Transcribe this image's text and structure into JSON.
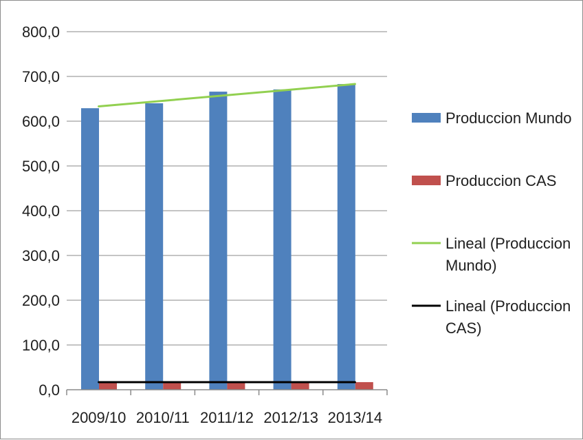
{
  "chart_data": {
    "type": "bar",
    "title": "",
    "xlabel": "",
    "ylabel": "",
    "categories": [
      "2009/10",
      "2010/11",
      "2011/12",
      "2012/13",
      "2013/14"
    ],
    "ylim": [
      0,
      800
    ],
    "y_ticks": [
      0,
      100,
      200,
      300,
      400,
      500,
      600,
      700,
      800
    ],
    "y_tick_labels": [
      "0,0",
      "100,0",
      "200,0",
      "300,0",
      "400,0",
      "500,0",
      "600,0",
      "700,0",
      "800,0"
    ],
    "grid": true,
    "legend_position": "right",
    "series": [
      {
        "name": "Produccion  Mundo",
        "color": "#4f81bd",
        "values": [
          629,
          640,
          666,
          671,
          683
        ]
      },
      {
        "name": "Produccion  CAS",
        "color": "#c0504d",
        "values": [
          17,
          17,
          17,
          17,
          17
        ]
      }
    ],
    "trendlines": [
      {
        "name": "Lineal (Produccion Mundo)",
        "legend_lines": [
          "Lineal (Produccion",
          "Mundo)"
        ],
        "color": "#92d050",
        "of_series": "Produccion  Mundo",
        "start": 633,
        "end": 683
      },
      {
        "name": "Lineal (Produccion CAS)",
        "legend_lines": [
          "Lineal (Produccion",
          "CAS)"
        ],
        "color": "#000000",
        "of_series": "Produccion  CAS",
        "start": 17,
        "end": 17
      }
    ]
  }
}
